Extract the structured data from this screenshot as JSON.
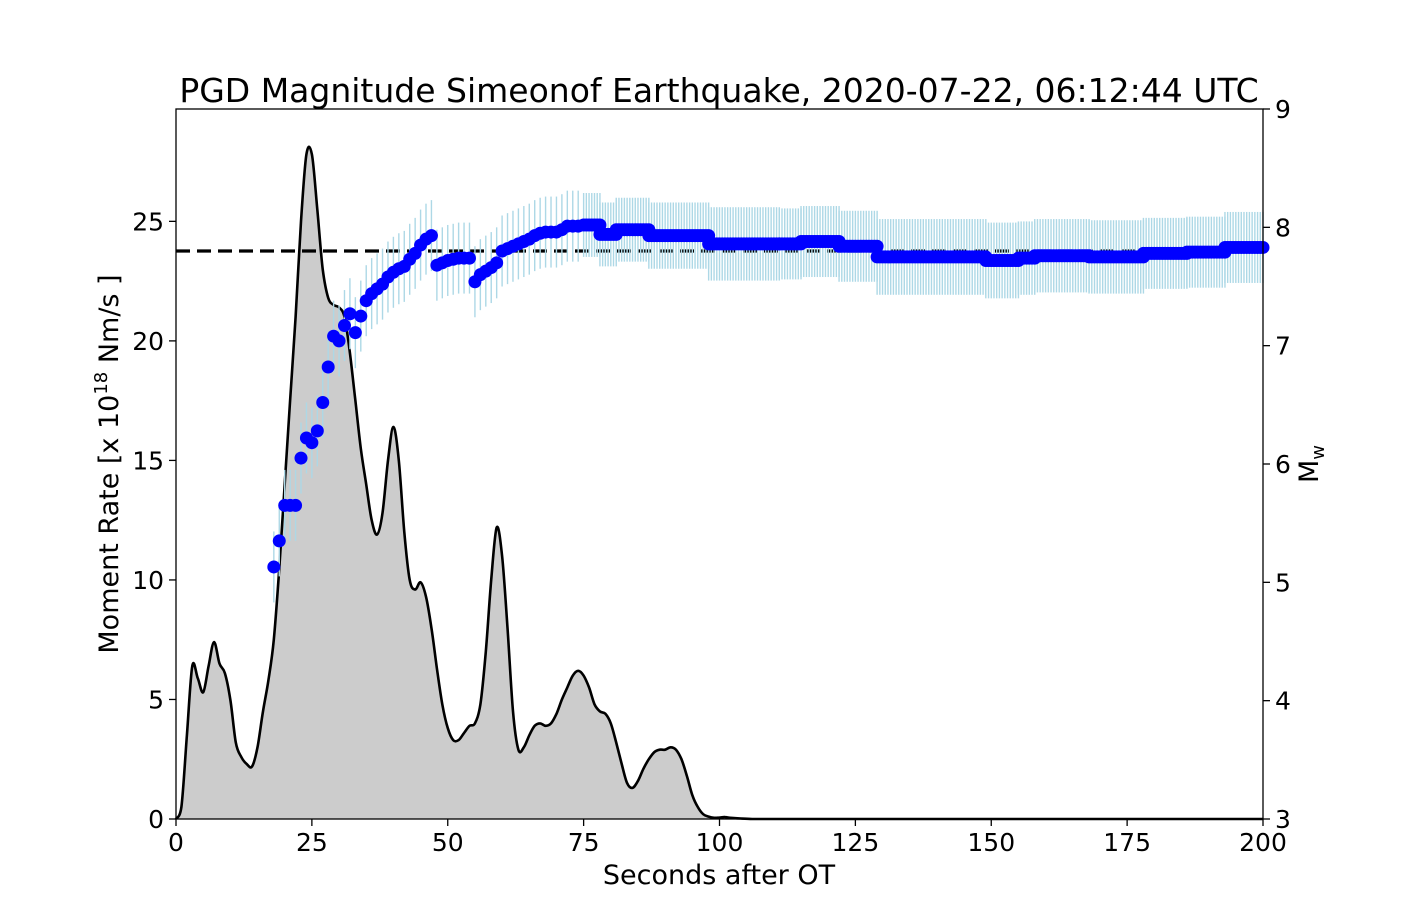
{
  "chart_data": {
    "type": "area",
    "title": "PGD Magnitude Simeonof Earthquake, 2020-07-22, 06:12:44 UTC",
    "xlabel": "Seconds after OT",
    "ylabel_left": {
      "main": "Moment Rate [x 10",
      "sup": "18",
      "tail": " Nm/s ]"
    },
    "ylabel_right": {
      "main": "M",
      "sub": "w"
    },
    "xlim": [
      0,
      200
    ],
    "ylim_left": [
      0,
      29.7
    ],
    "ylim_right": [
      3,
      9
    ],
    "x_ticks": [
      "0",
      "25",
      "50",
      "75",
      "100",
      "125",
      "150",
      "175",
      "200"
    ],
    "left_ticks": [
      "0",
      "5",
      "10",
      "15",
      "20",
      "25"
    ],
    "right_ticks": [
      "3",
      "4",
      "5",
      "6",
      "7",
      "8",
      "9"
    ],
    "grid": false,
    "colors": {
      "area_fill": "#cccccc",
      "area_line": "#000000",
      "points": "#0000ff",
      "error_bars": "#add8e6",
      "reference_line": "#000000"
    },
    "moment_rate": {
      "x": [
        0,
        1,
        2,
        3,
        4,
        5,
        6,
        7,
        8,
        9,
        10,
        11,
        12,
        13,
        14,
        15,
        16,
        17,
        18,
        19,
        20,
        21,
        22,
        23,
        24,
        25,
        26,
        27,
        28,
        29,
        30,
        31,
        32,
        33,
        34,
        35,
        36,
        37,
        38,
        39,
        40,
        41,
        42,
        43,
        44,
        45,
        46,
        47,
        48,
        49,
        50,
        51,
        52,
        53,
        54,
        55,
        56,
        57,
        58,
        59,
        60,
        61,
        62,
        63,
        64,
        65,
        66,
        67,
        68,
        69,
        70,
        71,
        72,
        73,
        74,
        75,
        76,
        77,
        78,
        79,
        80,
        81,
        82,
        83,
        84,
        85,
        86,
        87,
        88,
        89,
        90,
        91,
        92,
        93,
        94,
        95,
        96,
        97,
        98,
        99,
        100,
        101,
        102,
        104,
        106,
        108,
        110,
        115,
        120,
        150,
        200
      ],
      "y": [
        0,
        0.5,
        3.5,
        6.4,
        5.9,
        5.3,
        6.4,
        7.4,
        6.5,
        6.1,
        5.0,
        3.2,
        2.6,
        2.3,
        2.2,
        3.0,
        4.5,
        5.8,
        7.5,
        10.5,
        14.0,
        17.5,
        21.0,
        25.0,
        27.8,
        27.8,
        25.5,
        23.0,
        21.8,
        21.5,
        21.4,
        21.0,
        19.5,
        17.5,
        15.5,
        14.0,
        12.5,
        11.9,
        12.8,
        15.0,
        16.4,
        15.0,
        12.0,
        10.0,
        9.6,
        9.9,
        9.3,
        8.0,
        6.3,
        4.8,
        3.8,
        3.3,
        3.3,
        3.6,
        3.9,
        4.0,
        4.8,
        7.0,
        10.0,
        12.2,
        11.0,
        8.0,
        4.5,
        2.9,
        3.0,
        3.5,
        3.9,
        4.0,
        3.9,
        4.0,
        4.4,
        5.0,
        5.5,
        6.0,
        6.2,
        6.0,
        5.5,
        4.8,
        4.5,
        4.4,
        4.0,
        3.2,
        2.3,
        1.5,
        1.3,
        1.6,
        2.1,
        2.5,
        2.8,
        2.9,
        2.9,
        3.0,
        2.9,
        2.5,
        1.8,
        1.0,
        0.5,
        0.2,
        0.1,
        0.05,
        0.06,
        0.08,
        0.05,
        0.02,
        0.0,
        0.0,
        0.0,
        0.0,
        0.0,
        0.0,
        0.0
      ]
    },
    "reference_mw": 7.8,
    "mw_estimates": {
      "early": [
        [
          18,
          5.13,
          0.3
        ],
        [
          19,
          5.35,
          0.3
        ],
        [
          20,
          5.65,
          0.3
        ],
        [
          21,
          5.65,
          0.3
        ],
        [
          22,
          5.65,
          0.3
        ],
        [
          23,
          6.05,
          0.3
        ],
        [
          24,
          6.22,
          0.3
        ],
        [
          25,
          6.18,
          0.3
        ],
        [
          26,
          6.28,
          0.3
        ],
        [
          27,
          6.52,
          0.3
        ],
        [
          28,
          6.82,
          0.3
        ],
        [
          29,
          7.08,
          0.3
        ],
        [
          30,
          7.04,
          0.3
        ],
        [
          31,
          7.17,
          0.3
        ],
        [
          32,
          7.27,
          0.3
        ],
        [
          33,
          7.11,
          0.3
        ],
        [
          34,
          7.25,
          0.3
        ],
        [
          35,
          7.38,
          0.3
        ],
        [
          36,
          7.44,
          0.3
        ],
        [
          37,
          7.48,
          0.3
        ],
        [
          38,
          7.52,
          0.3
        ],
        [
          39,
          7.58,
          0.3
        ],
        [
          40,
          7.62,
          0.3
        ],
        [
          41,
          7.65,
          0.3
        ],
        [
          42,
          7.67,
          0.3
        ],
        [
          43,
          7.73,
          0.3
        ],
        [
          44,
          7.78,
          0.3
        ],
        [
          45,
          7.85,
          0.3
        ],
        [
          46,
          7.9,
          0.3
        ],
        [
          47,
          7.93,
          0.3
        ],
        [
          48,
          7.68,
          0.3
        ],
        [
          49,
          7.7,
          0.3
        ],
        [
          50,
          7.72,
          0.3
        ],
        [
          51,
          7.73,
          0.3
        ],
        [
          52,
          7.74,
          0.3
        ],
        [
          53,
          7.74,
          0.3
        ],
        [
          54,
          7.74,
          0.3
        ],
        [
          55,
          7.54,
          0.3
        ],
        [
          56,
          7.6,
          0.3
        ],
        [
          57,
          7.63,
          0.3
        ],
        [
          58,
          7.66,
          0.3
        ],
        [
          59,
          7.7,
          0.3
        ],
        [
          60,
          7.8,
          0.3
        ],
        [
          61,
          7.82,
          0.3
        ],
        [
          62,
          7.84,
          0.3
        ],
        [
          63,
          7.86,
          0.3
        ],
        [
          64,
          7.88,
          0.3
        ],
        [
          65,
          7.9,
          0.3
        ],
        [
          66,
          7.93,
          0.3
        ],
        [
          67,
          7.95,
          0.3
        ],
        [
          68,
          7.96,
          0.3
        ],
        [
          69,
          7.96,
          0.3
        ],
        [
          70,
          7.96,
          0.3
        ],
        [
          71,
          7.98,
          0.3
        ],
        [
          72,
          8.01,
          0.3
        ],
        [
          73,
          8.01,
          0.3
        ],
        [
          74,
          8.01,
          0.3
        ]
      ],
      "steps": [
        [
          75,
          78,
          8.02,
          0.27
        ],
        [
          78,
          81,
          7.94,
          0.27
        ],
        [
          81,
          87,
          7.98,
          0.27
        ],
        [
          87,
          98,
          7.93,
          0.28
        ],
        [
          98,
          111,
          7.86,
          0.31
        ],
        [
          111,
          115,
          7.86,
          0.3
        ],
        [
          115,
          122,
          7.88,
          0.3
        ],
        [
          122,
          129,
          7.84,
          0.3
        ],
        [
          129,
          149,
          7.75,
          0.32
        ],
        [
          149,
          155,
          7.72,
          0.32
        ],
        [
          155,
          158,
          7.74,
          0.31
        ],
        [
          158,
          168,
          7.76,
          0.31
        ],
        [
          168,
          178,
          7.75,
          0.31
        ],
        [
          178,
          186,
          7.78,
          0.3
        ],
        [
          186,
          193,
          7.79,
          0.3
        ],
        [
          193,
          200,
          7.83,
          0.3
        ]
      ]
    }
  }
}
